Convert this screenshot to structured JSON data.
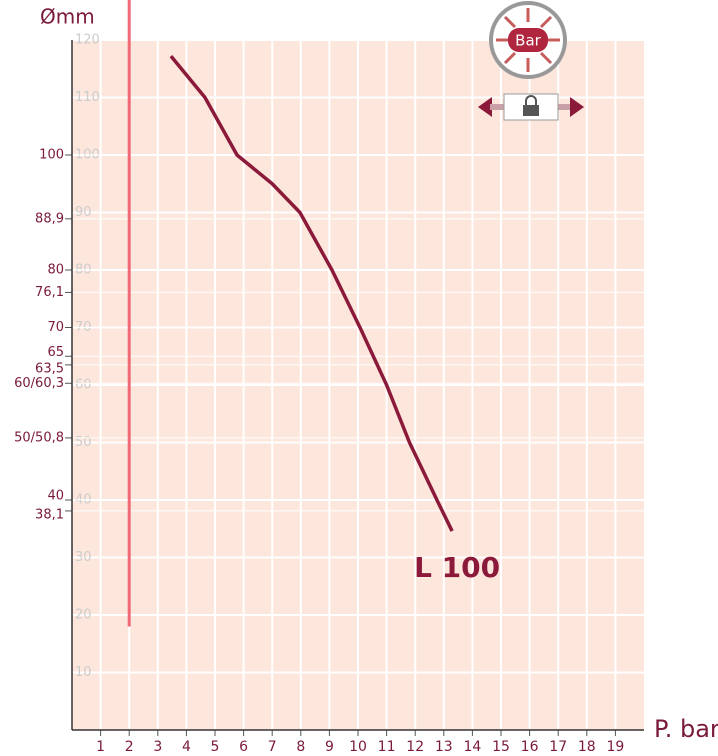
{
  "chart_data": {
    "type": "line",
    "y_axis_label": "Ømm",
    "x_axis_label": "P. bar",
    "badge_label": "Bar",
    "xlim": [
      0,
      20
    ],
    "ylim": [
      0,
      120
    ],
    "xticks": [
      1,
      2,
      3,
      4,
      5,
      6,
      7,
      8,
      9,
      10,
      11,
      12,
      13,
      14,
      15,
      16,
      17,
      18,
      19
    ],
    "yticks": [
      10,
      20,
      30,
      40,
      50,
      60,
      70,
      80,
      90,
      100,
      110,
      120
    ],
    "y_outer_ticks": [
      100,
      {
        "value": 88.9,
        "label": "88,9"
      },
      80,
      {
        "value": 76.1,
        "label": "76,1"
      },
      70,
      65,
      {
        "value": 63.5,
        "label": "63,5"
      },
      {
        "value": 60.3,
        "label": "60/60,3"
      },
      {
        "value": 50.8,
        "label": "50/50,8"
      },
      40,
      {
        "value": 38.1,
        "label": "38,1"
      }
    ],
    "grid": true,
    "ref_line": {
      "x": 2,
      "y_from": 18,
      "color": "#f06a78"
    },
    "series": [
      {
        "name": "L 100",
        "color": "#8b1a3a",
        "x": [
          3.46,
          4.65,
          5.77,
          7.0,
          7.97,
          9.09,
          10.07,
          11.0,
          11.8,
          12.76,
          13.29
        ],
        "values": [
          117.2,
          110,
          100,
          95,
          90,
          80,
          70,
          60,
          50,
          40,
          34.6
        ]
      }
    ]
  }
}
